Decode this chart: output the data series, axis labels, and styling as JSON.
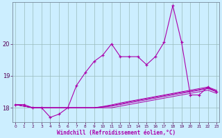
{
  "xlabel": "Windchill (Refroidissement éolien,°C)",
  "background_color": "#cceeff",
  "line_color": "#aa00aa",
  "grid_color": "#99bbbb",
  "x_ticks": [
    0,
    1,
    2,
    3,
    4,
    5,
    6,
    7,
    8,
    9,
    10,
    11,
    12,
    13,
    14,
    15,
    16,
    17,
    18,
    19,
    20,
    21,
    22,
    23
  ],
  "y_ticks": [
    18,
    19,
    20
  ],
  "ylim": [
    17.55,
    21.3
  ],
  "xlim": [
    -0.3,
    23.3
  ],
  "series": {
    "main": [
      18.1,
      18.1,
      18.0,
      18.0,
      17.7,
      17.8,
      18.0,
      18.7,
      19.1,
      19.45,
      19.65,
      20.0,
      19.6,
      19.6,
      19.6,
      19.35,
      19.6,
      20.05,
      21.2,
      20.05,
      18.4,
      18.4,
      18.65,
      18.5
    ],
    "line2": [
      18.1,
      18.05,
      18.0,
      18.0,
      18.0,
      18.0,
      18.0,
      18.0,
      18.0,
      18.0,
      18.0,
      18.0,
      18.05,
      18.1,
      18.15,
      18.2,
      18.25,
      18.3,
      18.35,
      18.4,
      18.45,
      18.5,
      18.55,
      18.45
    ],
    "line3": [
      18.1,
      18.05,
      18.0,
      18.0,
      18.0,
      18.0,
      18.0,
      18.0,
      18.0,
      18.0,
      18.02,
      18.05,
      18.1,
      18.15,
      18.2,
      18.25,
      18.3,
      18.35,
      18.4,
      18.45,
      18.5,
      18.55,
      18.6,
      18.5
    ],
    "line4": [
      18.1,
      18.05,
      18.0,
      18.0,
      18.0,
      18.0,
      18.0,
      18.0,
      18.0,
      18.0,
      18.03,
      18.07,
      18.12,
      18.18,
      18.23,
      18.28,
      18.33,
      18.38,
      18.43,
      18.48,
      18.52,
      18.57,
      18.62,
      18.52
    ],
    "line5": [
      18.1,
      18.05,
      18.0,
      18.0,
      18.0,
      18.0,
      18.0,
      18.0,
      18.0,
      18.0,
      18.04,
      18.09,
      18.15,
      18.2,
      18.25,
      18.3,
      18.35,
      18.4,
      18.45,
      18.5,
      18.55,
      18.6,
      18.65,
      18.55
    ]
  }
}
